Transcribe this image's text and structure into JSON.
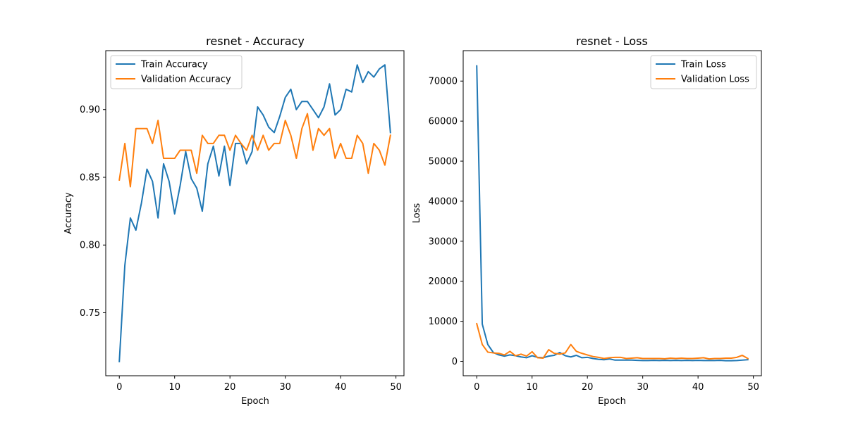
{
  "chart_data": [
    {
      "type": "line",
      "title": "resnet - Accuracy",
      "xlabel": "Epoch",
      "ylabel": "Accuracy",
      "xlim": [
        -2.45,
        51.45
      ],
      "ylim": [
        0.7035,
        0.9435
      ],
      "xticks": [
        0,
        10,
        20,
        30,
        40,
        50
      ],
      "yticks": [
        0.75,
        0.8,
        0.85,
        0.9
      ],
      "xtick_labels": [
        "0",
        "10",
        "20",
        "30",
        "40",
        "50"
      ],
      "ytick_labels": [
        "0.75",
        "0.80",
        "0.85",
        "0.90"
      ],
      "grid": false,
      "legend_position": "upper left",
      "x": [
        0,
        1,
        2,
        3,
        4,
        5,
        6,
        7,
        8,
        9,
        10,
        11,
        12,
        13,
        14,
        15,
        16,
        17,
        18,
        19,
        20,
        21,
        22,
        23,
        24,
        25,
        26,
        27,
        28,
        29,
        30,
        31,
        32,
        33,
        34,
        35,
        36,
        37,
        38,
        39,
        40,
        41,
        42,
        43,
        44,
        45,
        46,
        47,
        48,
        49
      ],
      "series": [
        {
          "name": "Train Accuracy",
          "color": "#1f77b4",
          "values": [
            0.714,
            0.785,
            0.82,
            0.811,
            0.831,
            0.856,
            0.847,
            0.82,
            0.86,
            0.847,
            0.823,
            0.844,
            0.869,
            0.849,
            0.842,
            0.825,
            0.86,
            0.873,
            0.851,
            0.873,
            0.844,
            0.875,
            0.875,
            0.86,
            0.869,
            0.902,
            0.896,
            0.887,
            0.883,
            0.895,
            0.909,
            0.915,
            0.9,
            0.906,
            0.906,
            0.9,
            0.894,
            0.902,
            0.919,
            0.896,
            0.9,
            0.915,
            0.913,
            0.933,
            0.92,
            0.928,
            0.924,
            0.93,
            0.933,
            0.883
          ]
        },
        {
          "name": "Validation Accuracy",
          "color": "#ff7f0e",
          "values": [
            0.848,
            0.875,
            0.843,
            0.886,
            0.886,
            0.886,
            0.875,
            0.892,
            0.864,
            0.864,
            0.864,
            0.87,
            0.87,
            0.87,
            0.853,
            0.881,
            0.875,
            0.875,
            0.881,
            0.881,
            0.87,
            0.881,
            0.875,
            0.87,
            0.881,
            0.87,
            0.881,
            0.87,
            0.875,
            0.875,
            0.892,
            0.881,
            0.864,
            0.886,
            0.897,
            0.87,
            0.886,
            0.881,
            0.886,
            0.864,
            0.875,
            0.864,
            0.864,
            0.881,
            0.875,
            0.853,
            0.875,
            0.87,
            0.859,
            0.881
          ]
        }
      ]
    },
    {
      "type": "line",
      "title": "resnet - Loss",
      "xlabel": "Epoch",
      "ylabel": "Loss",
      "xlim": [
        -2.45,
        51.45
      ],
      "ylim": [
        -3600,
        77600
      ],
      "xticks": [
        0,
        10,
        20,
        30,
        40,
        50
      ],
      "yticks": [
        0,
        10000,
        20000,
        30000,
        40000,
        50000,
        60000,
        70000
      ],
      "xtick_labels": [
        "0",
        "10",
        "20",
        "30",
        "40",
        "50"
      ],
      "ytick_labels": [
        "0",
        "10000",
        "20000",
        "30000",
        "40000",
        "50000",
        "60000",
        "70000"
      ],
      "grid": false,
      "legend_position": "upper right",
      "x": [
        0,
        1,
        2,
        3,
        4,
        5,
        6,
        7,
        8,
        9,
        10,
        11,
        12,
        13,
        14,
        15,
        16,
        17,
        18,
        19,
        20,
        21,
        22,
        23,
        24,
        25,
        26,
        27,
        28,
        29,
        30,
        31,
        32,
        33,
        34,
        35,
        36,
        37,
        38,
        39,
        40,
        41,
        42,
        43,
        44,
        45,
        46,
        47,
        48,
        49
      ],
      "series": [
        {
          "name": "Train Loss",
          "color": "#1f77b4",
          "values": [
            73800,
            9300,
            4200,
            2200,
            1600,
            1300,
            1600,
            1400,
            1100,
            900,
            1400,
            1000,
            900,
            1300,
            1500,
            2200,
            1400,
            1100,
            1500,
            900,
            1000,
            700,
            500,
            400,
            600,
            300,
            300,
            300,
            300,
            250,
            200,
            200,
            250,
            200,
            250,
            200,
            250,
            200,
            250,
            200,
            250,
            200,
            200,
            200,
            250,
            150,
            150,
            200,
            300,
            400
          ]
        },
        {
          "name": "Validation Loss",
          "color": "#ff7f0e",
          "values": [
            9400,
            4200,
            2300,
            2100,
            2000,
            1600,
            2500,
            1400,
            1800,
            1300,
            2400,
            900,
            800,
            2900,
            2000,
            1800,
            2100,
            4200,
            2500,
            2000,
            1600,
            1200,
            1000,
            700,
            900,
            1000,
            1000,
            700,
            800,
            900,
            700,
            700,
            700,
            700,
            650,
            800,
            700,
            800,
            700,
            700,
            800,
            900,
            600,
            700,
            700,
            800,
            800,
            1000,
            1500,
            700
          ]
        }
      ]
    }
  ]
}
